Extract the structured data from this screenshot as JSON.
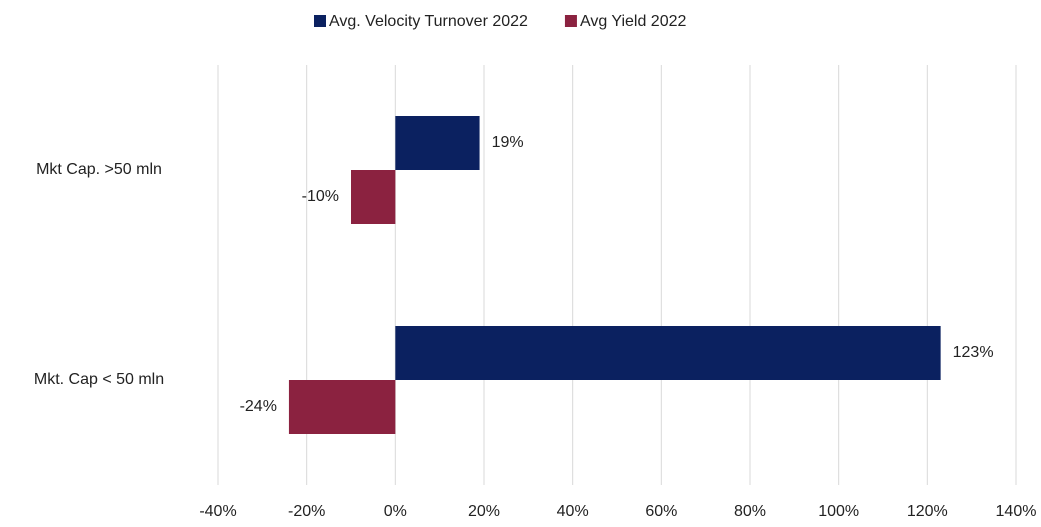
{
  "chart_data": {
    "type": "hbar",
    "categories": [
      "Mkt Cap. >50 mln",
      "Mkt. Cap < 50 mln"
    ],
    "series": [
      {
        "name": "Avg. Velocity Turnover 2022",
        "color": "#0b2160",
        "values": [
          19,
          123
        ],
        "value_labels": [
          "19%",
          "123%"
        ]
      },
      {
        "name": "Avg Yield 2022",
        "color": "#8b2240",
        "values": [
          -10,
          -24
        ],
        "value_labels": [
          "-10%",
          "-24%"
        ]
      }
    ],
    "xlim": [
      -40,
      140
    ],
    "xticks": [
      {
        "value": -40,
        "label": "-40%"
      },
      {
        "value": -20,
        "label": "-20%"
      },
      {
        "value": 0,
        "label": "0%"
      },
      {
        "value": 20,
        "label": "20%"
      },
      {
        "value": 40,
        "label": "40%"
      },
      {
        "value": 60,
        "label": "60%"
      },
      {
        "value": 80,
        "label": "80%"
      },
      {
        "value": 100,
        "label": "100%"
      },
      {
        "value": 120,
        "label": "120%"
      },
      {
        "value": 140,
        "label": "140%"
      }
    ],
    "grid": true,
    "legend": "top"
  }
}
